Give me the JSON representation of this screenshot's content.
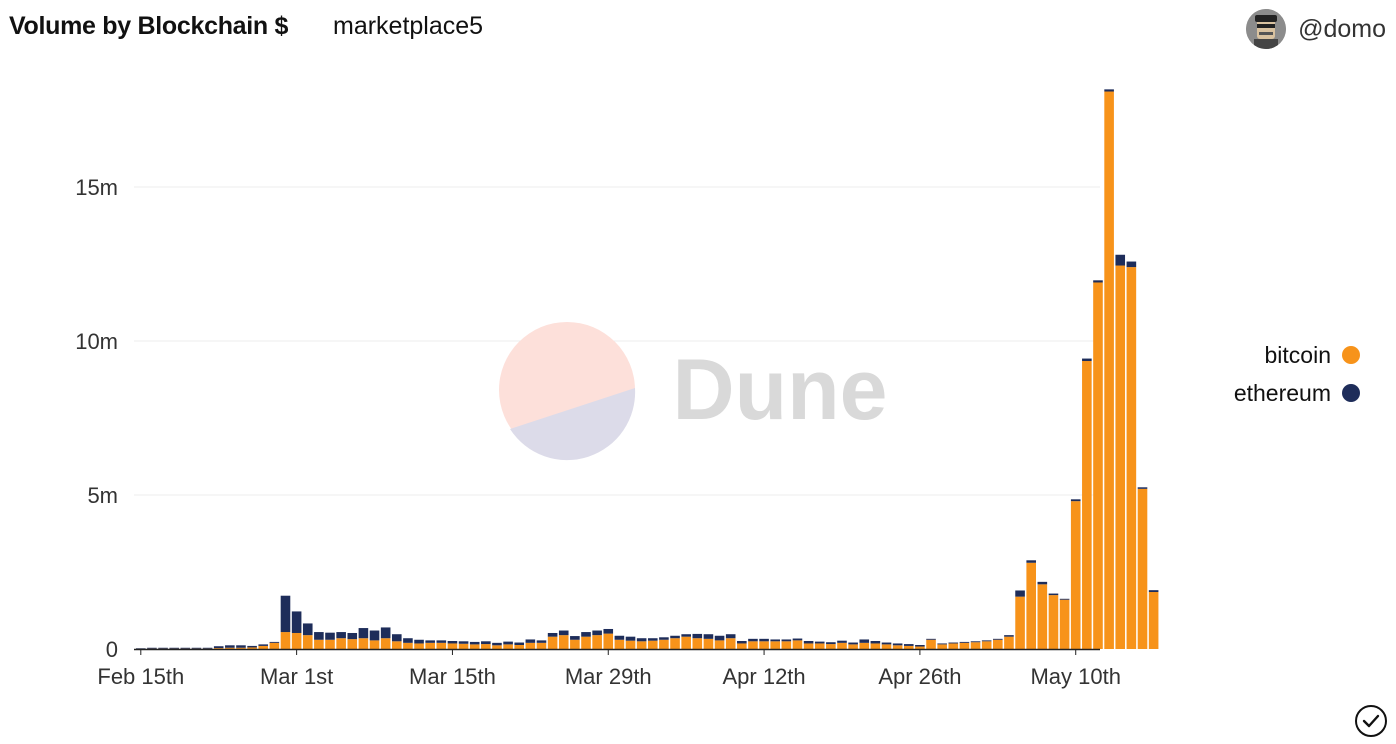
{
  "header": {
    "title": "Volume by Blockchain $",
    "subtitle": "marketplace5",
    "username": "@domo"
  },
  "watermark": {
    "text": "Dune"
  },
  "icons": {
    "avatar": "user-avatar-icon",
    "status": "check-circle-icon"
  },
  "colors": {
    "bitcoin": "#f7931a",
    "ethereum": "#1e2d5a",
    "grid": "#eeeeee"
  },
  "chart_data": {
    "type": "bar",
    "stacked": true,
    "start_date": "Feb 15th",
    "x_ticks": [
      "Feb 15th",
      "Mar 1st",
      "Mar 15th",
      "Mar 29th",
      "Apr 12th",
      "Apr 26th",
      "May 10th"
    ],
    "y_ticks": [
      "0",
      "5m",
      "10m",
      "15m"
    ],
    "ylim": [
      0,
      18500000
    ],
    "grid": true,
    "legend_position": "right",
    "series": [
      {
        "name": "bitcoin",
        "values": [
          5000,
          10000,
          10000,
          10000,
          10000,
          10000,
          10000,
          30000,
          40000,
          40000,
          50000,
          100000,
          200000,
          550000,
          520000,
          450000,
          300000,
          300000,
          350000,
          320000,
          350000,
          280000,
          350000,
          250000,
          200000,
          180000,
          200000,
          200000,
          180000,
          170000,
          150000,
          160000,
          120000,
          150000,
          130000,
          200000,
          200000,
          400000,
          450000,
          300000,
          400000,
          450000,
          500000,
          300000,
          270000,
          250000,
          270000,
          300000,
          350000,
          400000,
          350000,
          330000,
          280000,
          350000,
          180000,
          250000,
          250000,
          250000,
          250000,
          280000,
          180000,
          180000,
          160000,
          200000,
          150000,
          200000,
          180000,
          150000,
          120000,
          100000,
          80000,
          300000,
          150000,
          180000,
          200000,
          220000,
          250000,
          300000,
          400000,
          1700000,
          2800000,
          2100000,
          1750000,
          1600000,
          4800000,
          9350000,
          11900000,
          18100000,
          12450000,
          12400000,
          5200000,
          1850000
        ]
      },
      {
        "name": "ethereum",
        "values": [
          20000,
          30000,
          30000,
          30000,
          30000,
          30000,
          30000,
          60000,
          80000,
          80000,
          50000,
          50000,
          30000,
          1180000,
          700000,
          380000,
          250000,
          230000,
          200000,
          200000,
          330000,
          320000,
          350000,
          230000,
          150000,
          120000,
          80000,
          80000,
          80000,
          80000,
          80000,
          90000,
          80000,
          90000,
          80000,
          110000,
          80000,
          120000,
          150000,
          120000,
          150000,
          150000,
          150000,
          130000,
          130000,
          100000,
          80000,
          80000,
          80000,
          80000,
          140000,
          150000,
          150000,
          130000,
          80000,
          80000,
          80000,
          60000,
          60000,
          60000,
          80000,
          60000,
          60000,
          70000,
          60000,
          110000,
          80000,
          60000,
          60000,
          60000,
          50000,
          30000,
          30000,
          30000,
          30000,
          30000,
          30000,
          30000,
          50000,
          200000,
          80000,
          80000,
          50000,
          30000,
          60000,
          80000,
          70000,
          70000,
          350000,
          180000,
          50000,
          60000
        ]
      }
    ]
  }
}
